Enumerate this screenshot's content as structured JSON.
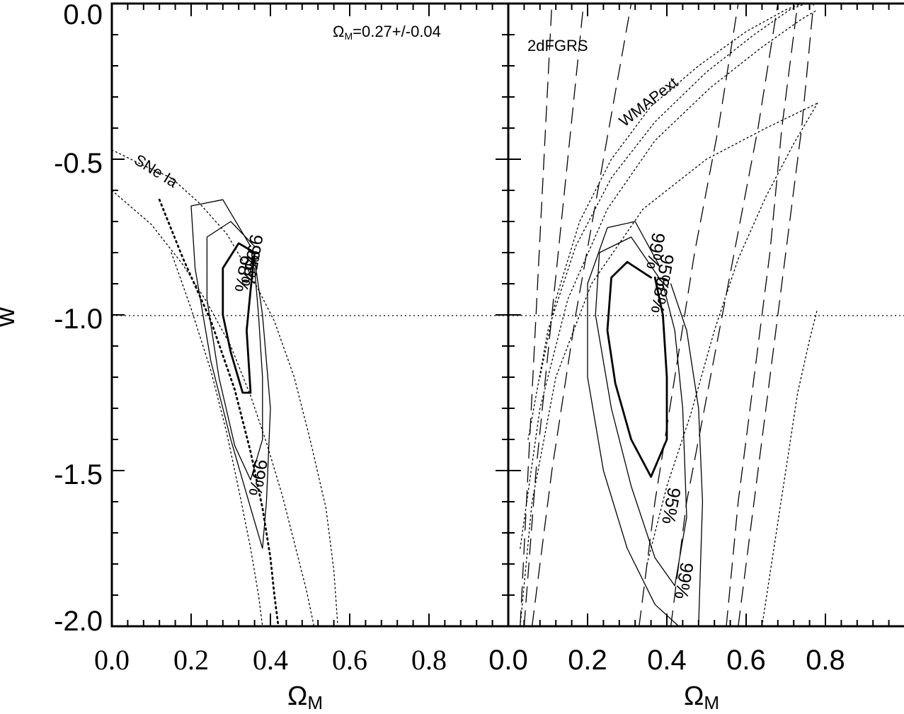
{
  "chart_data": [
    {
      "type": "line",
      "panel": "left",
      "xlabel_main": "Ω",
      "xlabel_sub": "M",
      "ylabel": "w",
      "xlim": [
        0.0,
        1.0
      ],
      "ylim": [
        -2.0,
        0.0
      ],
      "x_ticks": [
        "0.0",
        "0.2",
        "0.4",
        "0.6",
        "0.8"
      ],
      "y_ticks": [
        "0.0",
        "-0.5",
        "-1.0",
        "-1.5",
        "-2.0"
      ],
      "reference_line_w": -1.0,
      "annotations": {
        "prior": "ΩM=0.27+/-0.04",
        "prior_main": "Ω",
        "prior_sub": "M",
        "prior_value": "=0.27+/-0.04",
        "dataset": "SNe Ia"
      },
      "contour_labels": [
        "68%",
        "95%",
        "99%",
        "99%"
      ],
      "series": [
        {
          "style": "solid-thick",
          "x": [
            0.36,
            0.32,
            0.28,
            0.28,
            0.3,
            0.33,
            0.35,
            0.34,
            0.35,
            0.36
          ],
          "y": [
            -0.8,
            -0.77,
            -0.85,
            -1.0,
            -1.12,
            -1.25,
            -1.25,
            -1.05,
            -0.92,
            -0.8
          ]
        },
        {
          "style": "solid",
          "x": [
            0.36,
            0.3,
            0.24,
            0.24,
            0.27,
            0.31,
            0.35,
            0.38,
            0.38,
            0.37,
            0.36
          ],
          "y": [
            -0.78,
            -0.7,
            -0.75,
            -0.95,
            -1.2,
            -1.42,
            -1.53,
            -1.4,
            -1.2,
            -1.0,
            -0.85
          ]
        },
        {
          "style": "solid",
          "x": [
            0.35,
            0.28,
            0.2,
            0.21,
            0.25,
            0.3,
            0.35,
            0.38,
            0.39,
            0.4,
            0.38,
            0.36
          ],
          "y": [
            -0.78,
            -0.63,
            -0.65,
            -0.85,
            -1.15,
            -1.4,
            -1.62,
            -1.75,
            -1.6,
            -1.3,
            -1.0,
            -0.82
          ]
        },
        {
          "style": "dotted",
          "x": [
            0.0,
            0.08,
            0.15,
            0.22,
            0.29,
            0.35,
            0.41,
            0.46,
            0.5,
            0.54,
            0.56,
            0.57
          ],
          "y": [
            -0.47,
            -0.52,
            -0.56,
            -0.64,
            -0.74,
            -0.87,
            -1.02,
            -1.2,
            -1.4,
            -1.62,
            -1.82,
            -2.0
          ]
        },
        {
          "style": "dotted",
          "x": [
            0.0,
            0.1,
            0.18,
            0.24,
            0.3,
            0.35,
            0.39,
            0.43,
            0.46,
            0.49,
            0.51
          ],
          "y": [
            -0.6,
            -0.71,
            -0.84,
            -0.96,
            -1.1,
            -1.26,
            -1.41,
            -1.58,
            -1.73,
            -1.88,
            -2.0
          ]
        },
        {
          "style": "dotted-thick",
          "x": [
            0.12,
            0.18,
            0.25,
            0.31,
            0.35,
            0.38,
            0.4,
            0.41,
            0.42
          ],
          "y": [
            -0.63,
            -0.82,
            -1.02,
            -1.24,
            -1.44,
            -1.62,
            -1.78,
            -1.9,
            -2.0
          ]
        },
        {
          "style": "dotted",
          "x": [
            0.15,
            0.2,
            0.25,
            0.29,
            0.32,
            0.35,
            0.37,
            0.38
          ],
          "y": [
            -0.8,
            -0.98,
            -1.18,
            -1.38,
            -1.56,
            -1.75,
            -1.9,
            -2.0
          ]
        }
      ]
    },
    {
      "type": "line",
      "panel": "right",
      "xlabel_main": "Ω",
      "xlabel_sub": "M",
      "xlim": [
        0.0,
        1.0
      ],
      "ylim": [
        -2.0,
        0.0
      ],
      "x_ticks": [
        "0.0",
        "0.2",
        "0.4",
        "0.6",
        "0.8"
      ],
      "reference_line_w": -1.0,
      "annotations": {
        "dataset_a": "2dFGRS",
        "dataset_b": "WMAPext"
      },
      "contour_labels": [
        "68%",
        "95%",
        "99%",
        "95%",
        "99%"
      ],
      "series": [
        {
          "style": "solid-thick",
          "x": [
            0.36,
            0.3,
            0.26,
            0.25,
            0.27,
            0.31,
            0.36,
            0.4,
            0.4,
            0.39,
            0.37
          ],
          "y": [
            -0.88,
            -0.83,
            -0.88,
            -1.05,
            -1.22,
            -1.4,
            -1.52,
            -1.4,
            -1.2,
            -1.0,
            -0.88
          ]
        },
        {
          "style": "solid",
          "x": [
            0.38,
            0.31,
            0.23,
            0.22,
            0.26,
            0.31,
            0.37,
            0.42,
            0.45,
            0.44,
            0.42,
            0.39
          ],
          "y": [
            -0.88,
            -0.75,
            -0.8,
            -1.0,
            -1.3,
            -1.55,
            -1.78,
            -1.87,
            -1.65,
            -1.3,
            -1.05,
            -0.9
          ]
        },
        {
          "style": "solid",
          "x": [
            0.38,
            0.32,
            0.25,
            0.2,
            0.2,
            0.24,
            0.3,
            0.37,
            0.43,
            0.48,
            0.49,
            0.48,
            0.45,
            0.41
          ],
          "y": [
            -0.84,
            -0.7,
            -0.72,
            -0.9,
            -1.2,
            -1.5,
            -1.75,
            -1.93,
            -2.0,
            -2.0,
            -1.6,
            -1.3,
            -1.05,
            -0.9
          ]
        },
        {
          "style": "dashed",
          "x": [
            0.03,
            0.05,
            0.07,
            0.09,
            0.11
          ],
          "y": [
            -2.0,
            -1.5,
            -1.0,
            -0.5,
            0.0
          ]
        },
        {
          "style": "dashed",
          "x": [
            0.04,
            0.07,
            0.11,
            0.15,
            0.19
          ],
          "y": [
            -2.0,
            -1.5,
            -1.0,
            -0.5,
            0.0
          ]
        },
        {
          "style": "dashed",
          "x": [
            0.06,
            0.11,
            0.17,
            0.24,
            0.31
          ],
          "y": [
            -2.0,
            -1.5,
            -1.0,
            -0.5,
            0.0
          ]
        },
        {
          "style": "dashed",
          "x": [
            0.33,
            0.37,
            0.42,
            0.47,
            0.53,
            0.58
          ],
          "y": [
            -2.0,
            -1.6,
            -1.2,
            -0.8,
            -0.4,
            0.0
          ]
        },
        {
          "style": "dashed",
          "x": [
            0.41,
            0.45,
            0.51,
            0.57,
            0.63,
            0.68
          ],
          "y": [
            -2.0,
            -1.6,
            -1.2,
            -0.8,
            -0.4,
            0.0
          ]
        },
        {
          "style": "dashed",
          "x": [
            0.55,
            0.58,
            0.62,
            0.66,
            0.69,
            0.73
          ],
          "y": [
            -2.0,
            -1.6,
            -1.2,
            -0.8,
            -0.4,
            0.0
          ]
        },
        {
          "style": "dashed",
          "x": [
            0.58,
            0.62,
            0.66,
            0.7,
            0.74,
            0.77
          ],
          "y": [
            -2.0,
            -1.6,
            -1.2,
            -0.8,
            -0.4,
            0.0
          ]
        },
        {
          "style": "dotted",
          "x": [
            0.08,
            0.12,
            0.18,
            0.26,
            0.36,
            0.48,
            0.6,
            0.7,
            0.74
          ],
          "y": [
            -1.2,
            -0.95,
            -0.7,
            -0.5,
            -0.33,
            -0.2,
            -0.09,
            -0.02,
            0.0
          ]
        },
        {
          "style": "dotted",
          "x": [
            0.05,
            0.1,
            0.17,
            0.26,
            0.37,
            0.5,
            0.62,
            0.71,
            0.75
          ],
          "y": [
            -1.4,
            -1.05,
            -0.78,
            -0.56,
            -0.38,
            -0.22,
            -0.1,
            -0.02,
            0.0
          ]
        },
        {
          "style": "dotted",
          "x": [
            0.03,
            0.08,
            0.15,
            0.25,
            0.37,
            0.51,
            0.64,
            0.74,
            0.78
          ],
          "y": [
            -1.75,
            -1.3,
            -0.95,
            -0.66,
            -0.44,
            -0.27,
            -0.14,
            -0.05,
            -0.02
          ]
        },
        {
          "style": "dotted",
          "x": [
            0.03,
            0.06,
            0.12,
            0.21,
            0.34,
            0.5,
            0.65,
            0.78
          ],
          "y": [
            -2.0,
            -1.6,
            -1.2,
            -0.9,
            -0.66,
            -0.5,
            -0.4,
            -0.32
          ]
        },
        {
          "style": "dotted",
          "x": [
            0.35,
            0.4,
            0.46,
            0.52,
            0.58,
            0.65,
            0.72,
            0.78
          ],
          "y": [
            -1.8,
            -1.55,
            -1.32,
            -1.05,
            -0.82,
            -0.62,
            -0.45,
            -0.32
          ]
        },
        {
          "style": "dotted",
          "x": [
            0.64,
            0.67,
            0.7,
            0.73,
            0.76,
            0.78
          ],
          "y": [
            -2.0,
            -1.75,
            -1.5,
            -1.25,
            -1.08,
            -0.98
          ]
        }
      ]
    }
  ]
}
